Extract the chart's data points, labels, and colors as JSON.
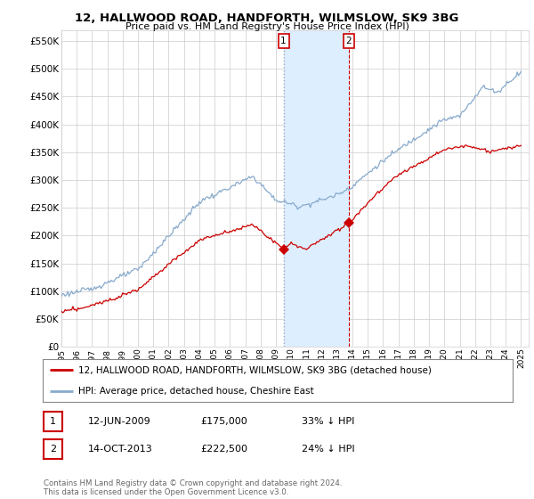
{
  "title": "12, HALLWOOD ROAD, HANDFORTH, WILMSLOW, SK9 3BG",
  "subtitle": "Price paid vs. HM Land Registry's House Price Index (HPI)",
  "ylabel_ticks": [
    "£0",
    "£50K",
    "£100K",
    "£150K",
    "£200K",
    "£250K",
    "£300K",
    "£350K",
    "£400K",
    "£450K",
    "£500K",
    "£550K"
  ],
  "ylim": [
    0,
    570000
  ],
  "yticks": [
    0,
    50000,
    100000,
    150000,
    200000,
    250000,
    300000,
    350000,
    400000,
    450000,
    500000,
    550000
  ],
  "legend_label_red": "12, HALLWOOD ROAD, HANDFORTH, WILMSLOW, SK9 3BG (detached house)",
  "legend_label_blue": "HPI: Average price, detached house, Cheshire East",
  "transaction1_label": "1",
  "transaction1_date": "12-JUN-2009",
  "transaction1_price": "£175,000",
  "transaction1_pct": "33% ↓ HPI",
  "transaction1_year": 2009.46,
  "transaction1_price_val": 175000,
  "transaction2_label": "2",
  "transaction2_date": "14-OCT-2013",
  "transaction2_price": "£222,500",
  "transaction2_pct": "24% ↓ HPI",
  "transaction2_year": 2013.79,
  "transaction2_price_val": 222500,
  "footer": "Contains HM Land Registry data © Crown copyright and database right 2024.\nThis data is licensed under the Open Government Licence v3.0.",
  "red_color": "#cc0000",
  "blue_color": "#88aacc",
  "highlight_color": "#ddeeff",
  "grid_color": "#cccccc",
  "background_color": "#ffffff",
  "t1_vline_color": "#aabbcc",
  "t2_vline_color": "#cc0000"
}
